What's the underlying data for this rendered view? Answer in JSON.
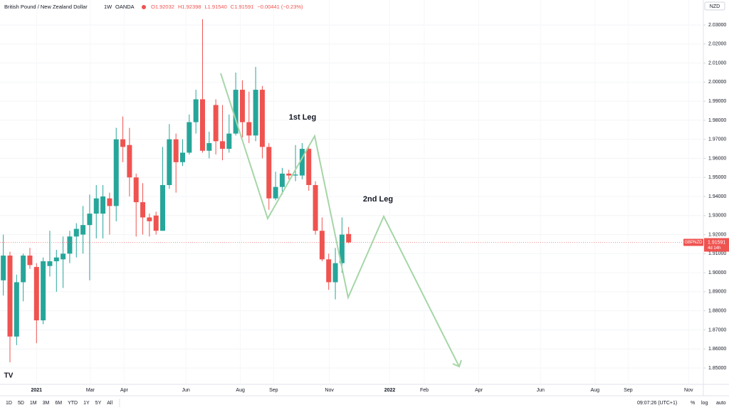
{
  "chart_data": {
    "type": "candlestick",
    "symbol": "British Pound / New Zealand Dollar",
    "interval": "1W",
    "source": "OANDA",
    "legend_values": [
      "O1.92032",
      "H1.92398",
      "L1.91540",
      "C1.91591",
      "−0.00441 (−0.23%)"
    ],
    "currency": "NZD",
    "x": [
      0,
      1,
      2,
      3,
      4,
      5,
      6,
      7,
      8,
      9,
      10,
      11,
      12,
      13,
      14,
      15,
      16,
      17,
      18,
      19,
      20,
      21,
      22,
      23,
      24,
      25,
      26,
      27,
      28,
      29,
      30,
      31,
      32,
      33,
      34,
      35,
      36,
      37,
      38,
      39,
      40,
      41,
      42,
      43,
      44,
      45,
      46,
      47,
      48,
      49,
      50,
      51,
      52
    ],
    "open": [
      1.896,
      1.909,
      1.8665,
      1.895,
      1.909,
      1.903,
      1.875,
      1.9035,
      1.906,
      1.907,
      1.91,
      1.919,
      1.92,
      1.925,
      1.931,
      1.931,
      1.939,
      1.935,
      1.97,
      1.967,
      1.95,
      1.937,
      1.929,
      1.93,
      1.922,
      1.946,
      1.97,
      1.958,
      1.963,
      1.979,
      1.991,
      1.964,
      1.988,
      1.969,
      1.965,
      1.973,
      1.996,
      1.979,
      1.972,
      1.996,
      1.966,
      1.939,
      1.945,
      1.952,
      1.951,
      1.951,
      1.965,
      1.946,
      1.922,
      1.907,
      1.895,
      1.905,
      1.92032
    ],
    "high": [
      1.92,
      1.911,
      1.899,
      1.91,
      1.913,
      1.905,
      1.908,
      1.922,
      1.912,
      1.919,
      1.922,
      1.926,
      1.935,
      1.941,
      1.946,
      1.946,
      1.942,
      1.976,
      1.982,
      1.976,
      1.952,
      1.947,
      1.931,
      1.932,
      1.966,
      1.978,
      1.973,
      1.97,
      1.983,
      1.996,
      2.033,
      1.974,
      1.991,
      1.988,
      1.983,
      2.005,
      2.001,
      1.995,
      2.008,
      1.998,
      1.968,
      1.953,
      1.955,
      1.954,
      1.967,
      1.968,
      1.966,
      1.948,
      1.929,
      1.91,
      1.913,
      1.929,
      1.92398
    ],
    "low": [
      1.888,
      1.853,
      1.862,
      1.885,
      1.902,
      1.863,
      1.873,
      1.898,
      1.89,
      1.892,
      1.905,
      1.908,
      1.91,
      1.896,
      1.918,
      1.918,
      1.92,
      1.927,
      1.958,
      1.94,
      1.919,
      1.92,
      1.919,
      1.92,
      1.922,
      1.944,
      1.942,
      1.956,
      1.962,
      1.973,
      1.963,
      1.96,
      1.962,
      1.959,
      1.963,
      1.972,
      1.971,
      1.968,
      1.969,
      1.96,
      1.933,
      1.938,
      1.941,
      1.949,
      1.948,
      1.949,
      1.943,
      1.92,
      1.906,
      1.891,
      1.886,
      1.9,
      1.9154
    ],
    "close": [
      1.909,
      1.8665,
      1.895,
      1.909,
      1.904,
      1.875,
      1.906,
      1.906,
      1.908,
      1.91,
      1.919,
      1.923,
      1.925,
      1.931,
      1.939,
      1.94,
      1.935,
      1.97,
      1.966,
      1.95,
      1.937,
      1.929,
      1.927,
      1.922,
      1.946,
      1.97,
      1.958,
      1.963,
      1.979,
      1.991,
      1.964,
      1.968,
      1.969,
      1.965,
      1.973,
      1.996,
      1.979,
      1.972,
      1.996,
      1.966,
      1.939,
      1.945,
      1.952,
      1.951,
      1.9515,
      1.965,
      1.946,
      1.922,
      1.907,
      1.895,
      1.905,
      1.92,
      1.91591
    ],
    "up_color": "#26a69a",
    "down_color": "#ef5350",
    "xlim": [
      -0.5,
      105.1
    ],
    "ylim": [
      1.8414,
      2.0431
    ],
    "xticks": [
      {
        "value": 5.0,
        "label": "2021"
      },
      {
        "value": 13.1,
        "label": "Mar"
      },
      {
        "value": 18.2,
        "label": "Apr"
      },
      {
        "value": 27.5,
        "label": "Jun"
      },
      {
        "value": 35.7,
        "label": "Aug"
      },
      {
        "value": 40.7,
        "label": "Sep"
      },
      {
        "value": 49.1,
        "label": "Nov"
      },
      {
        "value": 58.2,
        "label": "2022"
      },
      {
        "value": 63.4,
        "label": "Feb"
      },
      {
        "value": 71.6,
        "label": "Apr"
      },
      {
        "value": 80.9,
        "label": "Jun"
      },
      {
        "value": 89.1,
        "label": "Aug"
      },
      {
        "value": 94.1,
        "label": "Sep"
      },
      {
        "value": 103.2,
        "label": "Nov"
      }
    ],
    "yticks": [
      {
        "value": 1.85,
        "label": "1.85000"
      },
      {
        "value": 1.86,
        "label": "1.86000"
      },
      {
        "value": 1.87,
        "label": "1.87000"
      },
      {
        "value": 1.88,
        "label": "1.88000"
      },
      {
        "value": 1.89,
        "label": "1.89000"
      },
      {
        "value": 1.9,
        "label": "1.90000"
      },
      {
        "value": 1.91,
        "label": "1.91000"
      },
      {
        "value": 1.92,
        "label": "1.92000"
      },
      {
        "value": 1.93,
        "label": "1.93000"
      },
      {
        "value": 1.94,
        "label": "1.94000"
      },
      {
        "value": 1.95,
        "label": "1.95000"
      },
      {
        "value": 1.96,
        "label": "1.96000"
      },
      {
        "value": 1.97,
        "label": "1.97000"
      },
      {
        "value": 1.98,
        "label": "1.98000"
      },
      {
        "value": 1.99,
        "label": "1.99000"
      },
      {
        "value": 2.0,
        "label": "2.00000"
      },
      {
        "value": 2.01,
        "label": "2.01000"
      },
      {
        "value": 2.02,
        "label": "2.02000"
      },
      {
        "value": 2.03,
        "label": "2.03000"
      }
    ],
    "last_price": {
      "value": 1.91591,
      "label": "1.91591"
    },
    "symbol_tag": "GBPNZD",
    "countdown": "4d 14h",
    "annotations": [
      "1st Leg",
      "2nd Leg"
    ]
  },
  "toolbar": {
    "ranges": [
      "1D",
      "5D",
      "1M",
      "3M",
      "6M",
      "YTD",
      "1Y",
      "5Y",
      "All"
    ],
    "time": "09:07:26 (UTC+1)",
    "options": [
      "%",
      "log",
      "auto"
    ]
  }
}
